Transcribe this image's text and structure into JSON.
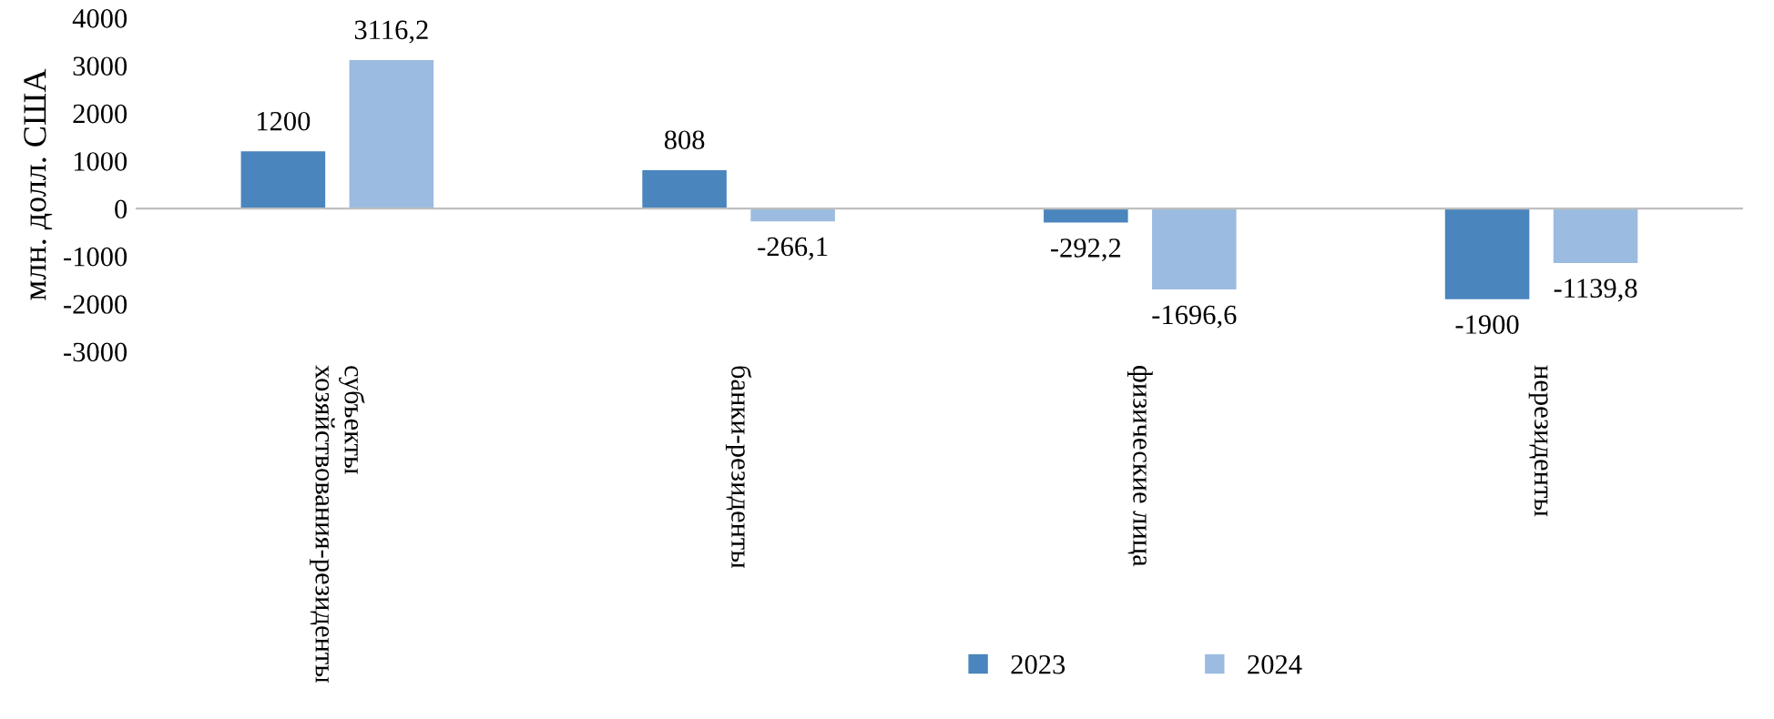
{
  "chart_data": {
    "type": "bar",
    "ylabel": "млн. долл. США",
    "categories": [
      "субъекты хозяйствования-резиденты",
      "банки-резиденты",
      "физические лица",
      "нерезиденты"
    ],
    "series": [
      {
        "name": "2023",
        "color": "#4a85bd",
        "values": [
          1200,
          808,
          -292.2,
          -1900
        ],
        "value_labels": [
          "1200",
          "808",
          "-292,2",
          "-1900"
        ]
      },
      {
        "name": "2024",
        "color": "#9cbbe0",
        "values": [
          3116.2,
          -266.1,
          -1696.6,
          -1139.8
        ],
        "value_labels": [
          "3116,2",
          "-266,1",
          "-1696,6",
          "-1139,8"
        ]
      }
    ],
    "ylim": [
      -3000,
      4000
    ],
    "yticks": [
      -3000,
      -2000,
      -1000,
      0,
      1000,
      2000,
      3000,
      4000
    ],
    "legend": "bottom"
  }
}
